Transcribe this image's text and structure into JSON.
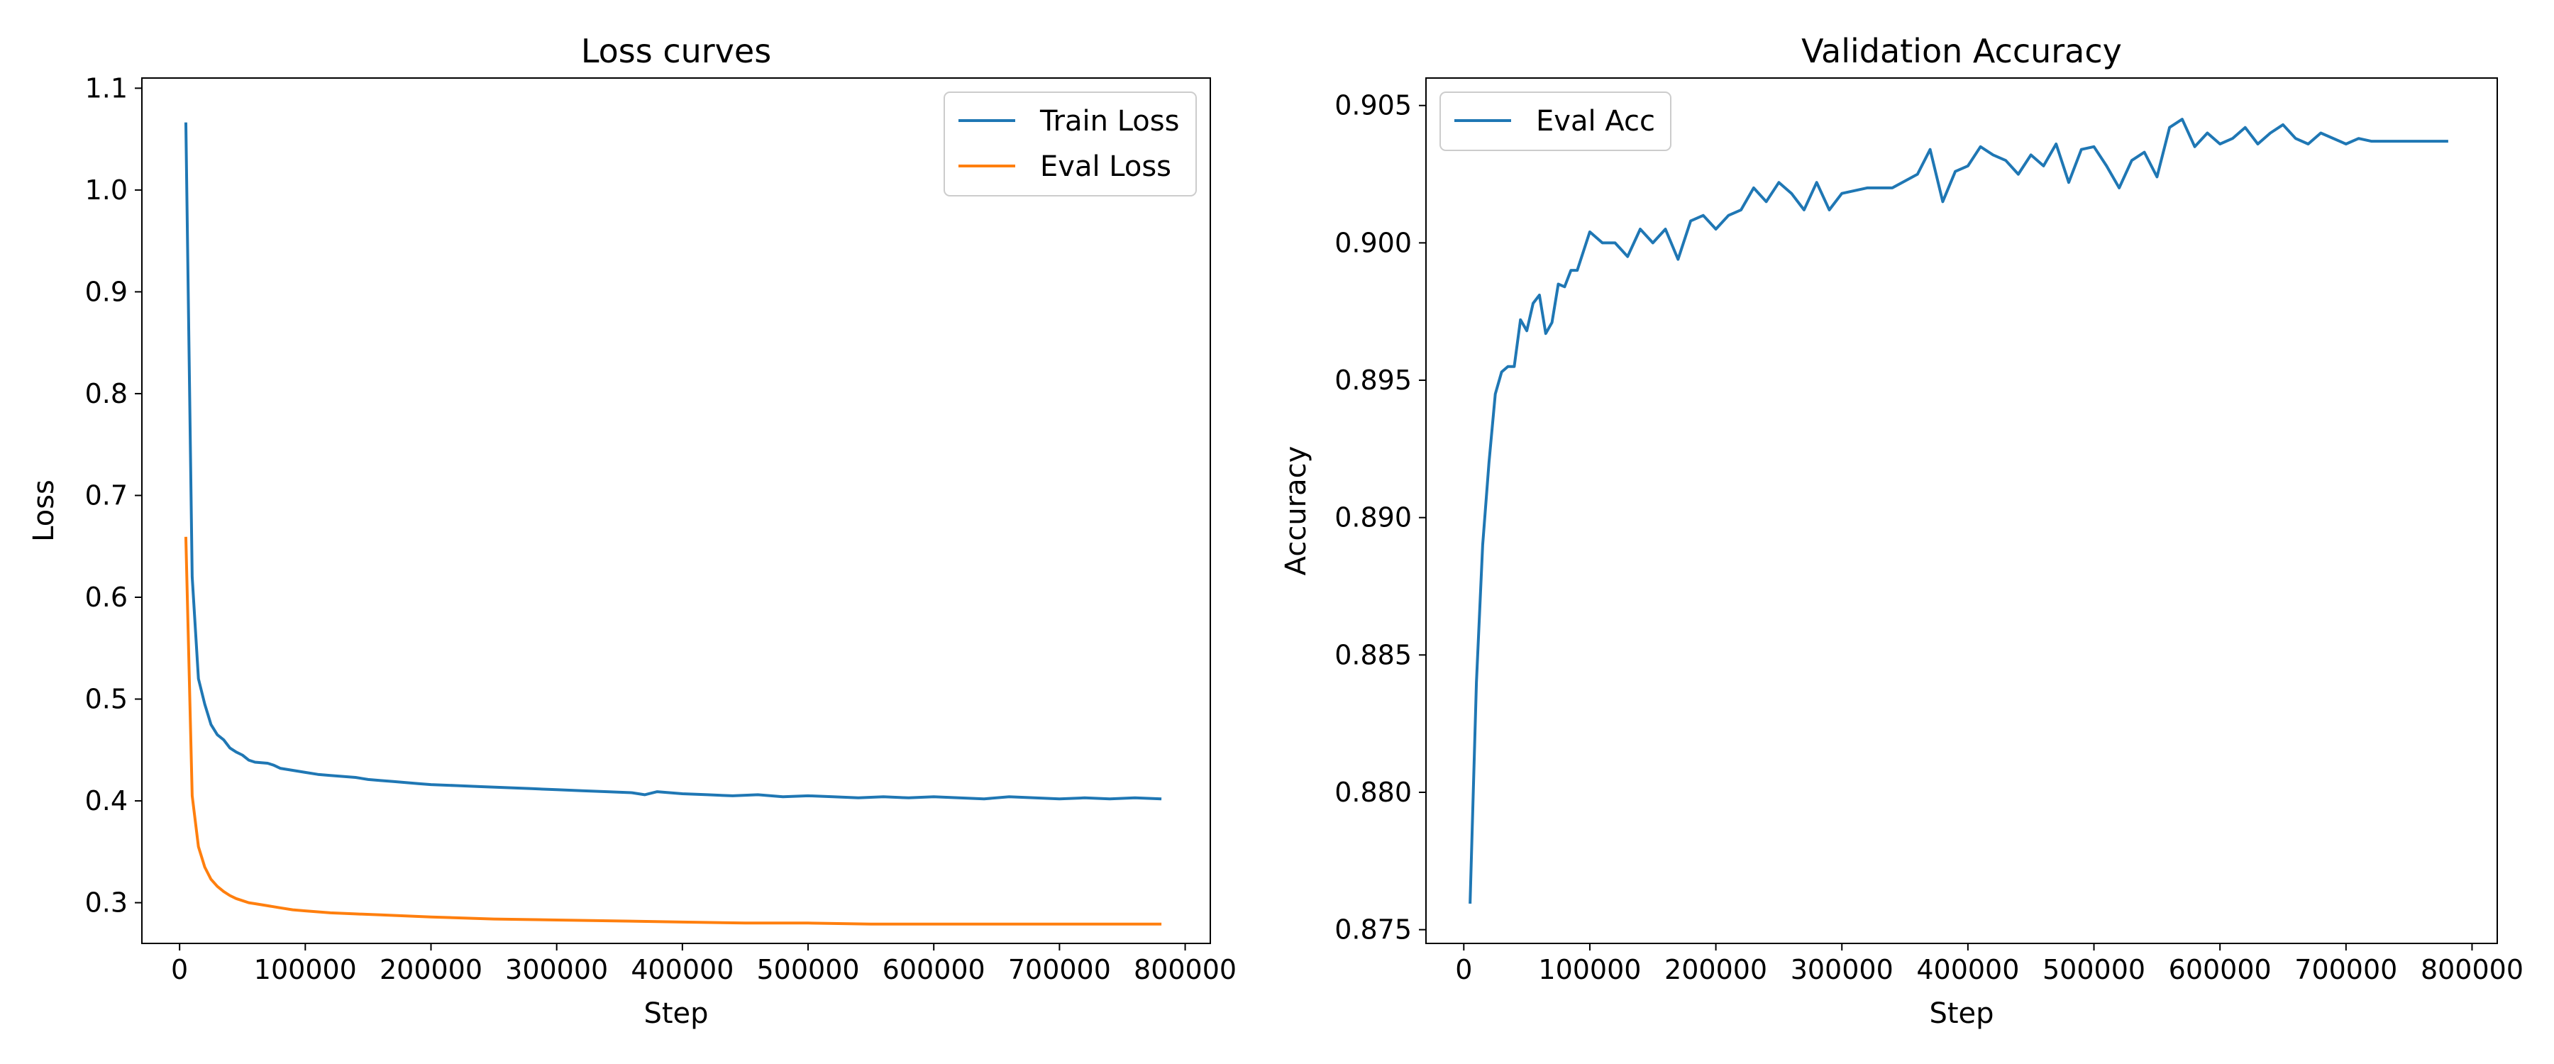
{
  "chart_data": [
    {
      "type": "line",
      "title": "Loss curves",
      "xlabel": "Step",
      "ylabel": "Loss",
      "xlim": [
        -30000,
        820000
      ],
      "ylim": [
        0.26,
        1.11
      ],
      "xticks": [
        0,
        100000,
        200000,
        300000,
        400000,
        500000,
        600000,
        700000,
        800000
      ],
      "xtick_labels": [
        "0",
        "100000",
        "200000",
        "300000",
        "400000",
        "500000",
        "600000",
        "700000",
        "800000"
      ],
      "yticks": [
        0.3,
        0.4,
        0.5,
        0.6,
        0.7,
        0.8,
        0.9,
        1.0,
        1.1
      ],
      "ytick_labels": [
        "0.3",
        "0.4",
        "0.5",
        "0.6",
        "0.7",
        "0.8",
        "0.9",
        "1.0",
        "1.1"
      ],
      "grid": false,
      "legend_position": "top-right",
      "series": [
        {
          "name": "Train Loss",
          "color": "#1f77b4",
          "x": [
            5000,
            10000,
            15000,
            20000,
            25000,
            30000,
            35000,
            40000,
            45000,
            50000,
            55000,
            60000,
            70000,
            75000,
            80000,
            90000,
            100000,
            110000,
            120000,
            130000,
            140000,
            150000,
            160000,
            170000,
            180000,
            190000,
            200000,
            220000,
            240000,
            260000,
            280000,
            300000,
            320000,
            340000,
            360000,
            370000,
            380000,
            400000,
            420000,
            440000,
            460000,
            480000,
            500000,
            520000,
            540000,
            560000,
            580000,
            600000,
            620000,
            640000,
            660000,
            680000,
            700000,
            720000,
            740000,
            760000,
            780000
          ],
          "values": [
            1.065,
            0.62,
            0.52,
            0.495,
            0.475,
            0.465,
            0.46,
            0.452,
            0.448,
            0.445,
            0.44,
            0.438,
            0.437,
            0.435,
            0.432,
            0.43,
            0.428,
            0.426,
            0.425,
            0.424,
            0.423,
            0.421,
            0.42,
            0.419,
            0.418,
            0.417,
            0.416,
            0.415,
            0.414,
            0.413,
            0.412,
            0.411,
            0.41,
            0.409,
            0.408,
            0.406,
            0.409,
            0.407,
            0.406,
            0.405,
            0.406,
            0.404,
            0.405,
            0.404,
            0.403,
            0.404,
            0.403,
            0.404,
            0.403,
            0.402,
            0.404,
            0.403,
            0.402,
            0.403,
            0.402,
            0.403,
            0.402
          ]
        },
        {
          "name": "Eval Loss",
          "color": "#ff7f0e",
          "x": [
            5000,
            10000,
            15000,
            20000,
            25000,
            30000,
            35000,
            40000,
            45000,
            50000,
            55000,
            60000,
            70000,
            80000,
            90000,
            100000,
            120000,
            140000,
            160000,
            180000,
            200000,
            250000,
            300000,
            350000,
            400000,
            450000,
            500000,
            550000,
            600000,
            650000,
            700000,
            750000,
            780000
          ],
          "values": [
            0.658,
            0.405,
            0.355,
            0.335,
            0.323,
            0.316,
            0.311,
            0.307,
            0.304,
            0.302,
            0.3,
            0.299,
            0.297,
            0.295,
            0.293,
            0.292,
            0.29,
            0.289,
            0.288,
            0.287,
            0.286,
            0.284,
            0.283,
            0.282,
            0.281,
            0.28,
            0.28,
            0.279,
            0.279,
            0.279,
            0.279,
            0.279,
            0.279
          ]
        }
      ]
    },
    {
      "type": "line",
      "title": "Validation Accuracy",
      "xlabel": "Step",
      "ylabel": "Accuracy",
      "xlim": [
        -30000,
        820000
      ],
      "ylim": [
        0.8745,
        0.906
      ],
      "xticks": [
        0,
        100000,
        200000,
        300000,
        400000,
        500000,
        600000,
        700000,
        800000
      ],
      "xtick_labels": [
        "0",
        "100000",
        "200000",
        "300000",
        "400000",
        "500000",
        "600000",
        "700000",
        "800000"
      ],
      "yticks": [
        0.875,
        0.88,
        0.885,
        0.89,
        0.895,
        0.9,
        0.905
      ],
      "ytick_labels": [
        "0.875",
        "0.880",
        "0.885",
        "0.890",
        "0.895",
        "0.900",
        "0.905"
      ],
      "grid": false,
      "legend_position": "top-left",
      "series": [
        {
          "name": "Eval Acc",
          "color": "#1f77b4",
          "x": [
            5000,
            10000,
            15000,
            20000,
            25000,
            30000,
            35000,
            40000,
            45000,
            50000,
            55000,
            60000,
            65000,
            70000,
            75000,
            80000,
            85000,
            90000,
            100000,
            110000,
            120000,
            130000,
            140000,
            150000,
            160000,
            170000,
            180000,
            190000,
            200000,
            210000,
            220000,
            230000,
            240000,
            250000,
            260000,
            270000,
            280000,
            290000,
            300000,
            320000,
            340000,
            360000,
            370000,
            380000,
            390000,
            400000,
            410000,
            420000,
            430000,
            440000,
            450000,
            460000,
            470000,
            480000,
            490000,
            500000,
            510000,
            520000,
            530000,
            540000,
            550000,
            560000,
            570000,
            580000,
            590000,
            600000,
            610000,
            620000,
            630000,
            640000,
            650000,
            660000,
            670000,
            680000,
            700000,
            710000,
            720000,
            740000,
            760000,
            780000
          ],
          "values": [
            0.876,
            0.884,
            0.889,
            0.892,
            0.8945,
            0.8953,
            0.8955,
            0.8955,
            0.8972,
            0.8968,
            0.8978,
            0.8981,
            0.8967,
            0.8971,
            0.8985,
            0.8984,
            0.899,
            0.899,
            0.9004,
            0.9,
            0.9,
            0.8995,
            0.9005,
            0.9,
            0.9005,
            0.8994,
            0.9008,
            0.901,
            0.9005,
            0.901,
            0.9012,
            0.902,
            0.9015,
            0.9022,
            0.9018,
            0.9012,
            0.9022,
            0.9012,
            0.9018,
            0.902,
            0.902,
            0.9025,
            0.9034,
            0.9015,
            0.9026,
            0.9028,
            0.9035,
            0.9032,
            0.903,
            0.9025,
            0.9032,
            0.9028,
            0.9036,
            0.9022,
            0.9034,
            0.9035,
            0.9028,
            0.902,
            0.903,
            0.9033,
            0.9024,
            0.9042,
            0.9045,
            0.9035,
            0.904,
            0.9036,
            0.9038,
            0.9042,
            0.9036,
            0.904,
            0.9043,
            0.9038,
            0.9036,
            0.904,
            0.9036,
            0.9038,
            0.9037,
            0.9037,
            0.9037,
            0.9037
          ]
        }
      ]
    }
  ]
}
